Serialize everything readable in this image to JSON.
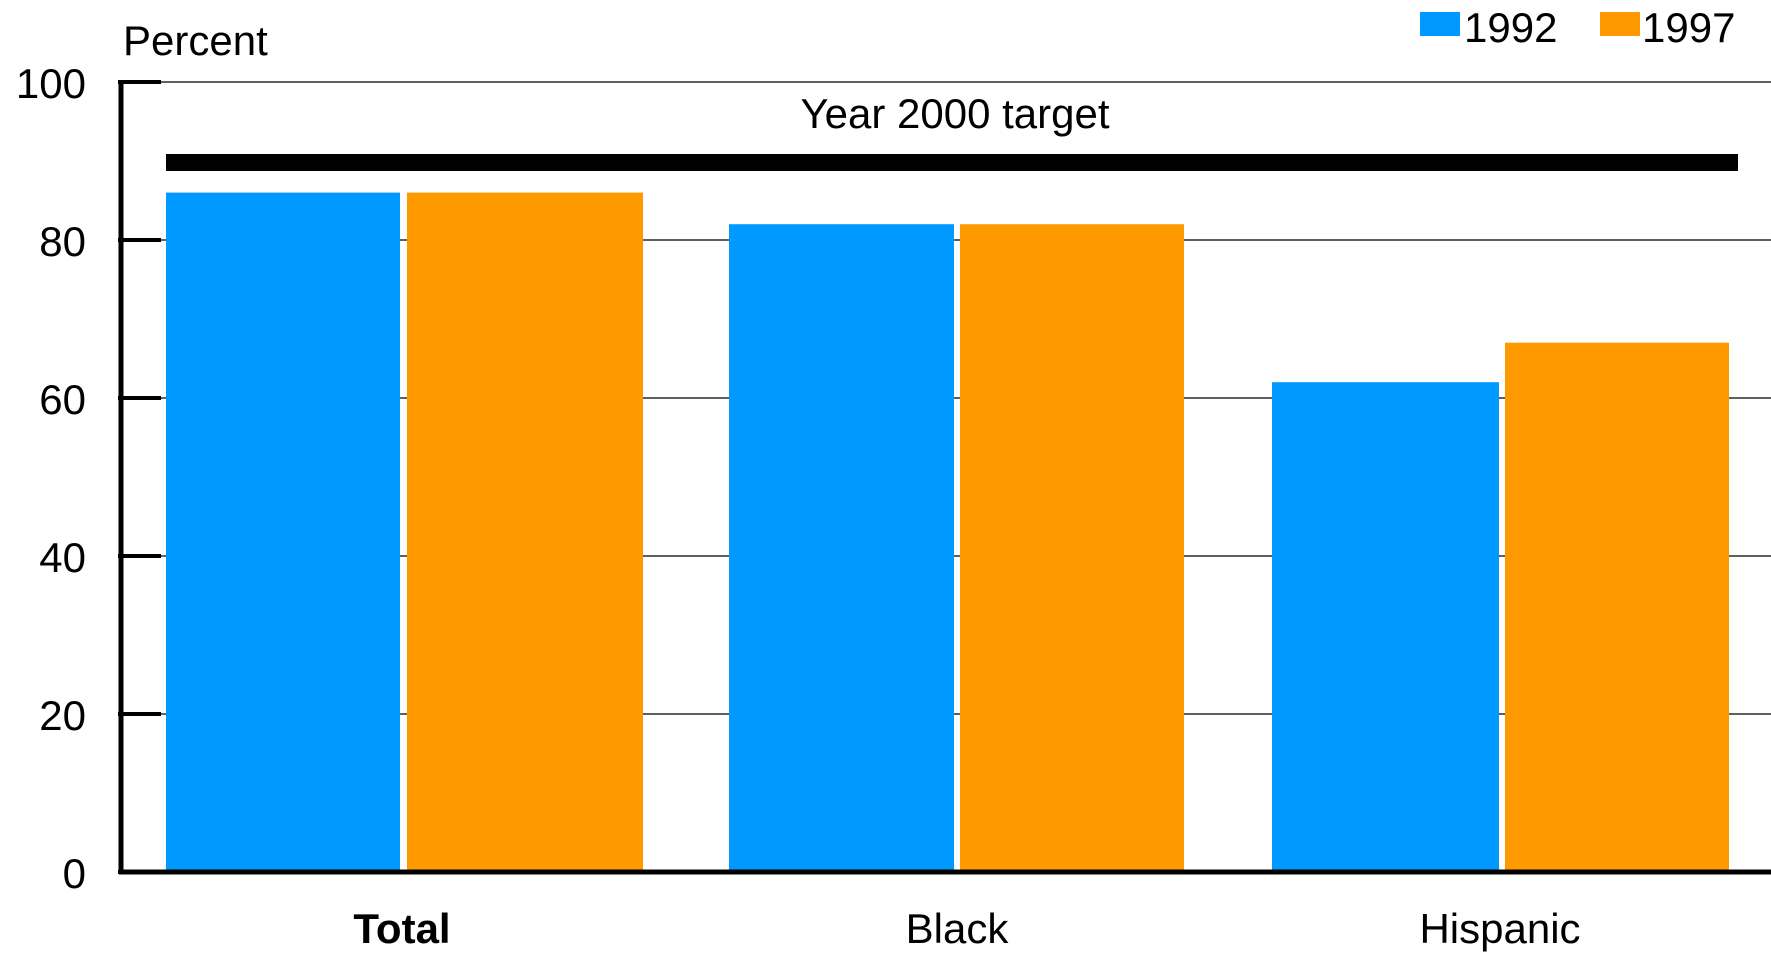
{
  "chart_data": {
    "type": "bar",
    "ylabel": "Percent",
    "ylim": [
      0,
      100
    ],
    "yticks": [
      "0",
      "20",
      "40",
      "60",
      "80",
      "100"
    ],
    "categories": [
      "Total",
      "Black",
      "Hispanic"
    ],
    "series": [
      {
        "name": "1992",
        "values": [
          86,
          82,
          62
        ],
        "color": "#0099ff"
      },
      {
        "name": "1997",
        "values": [
          86,
          82,
          67
        ],
        "color": "#ff9900"
      }
    ],
    "target": {
      "label": "Year 2000 target",
      "value": 90
    },
    "grid": true,
    "legend_position": "top-right"
  }
}
